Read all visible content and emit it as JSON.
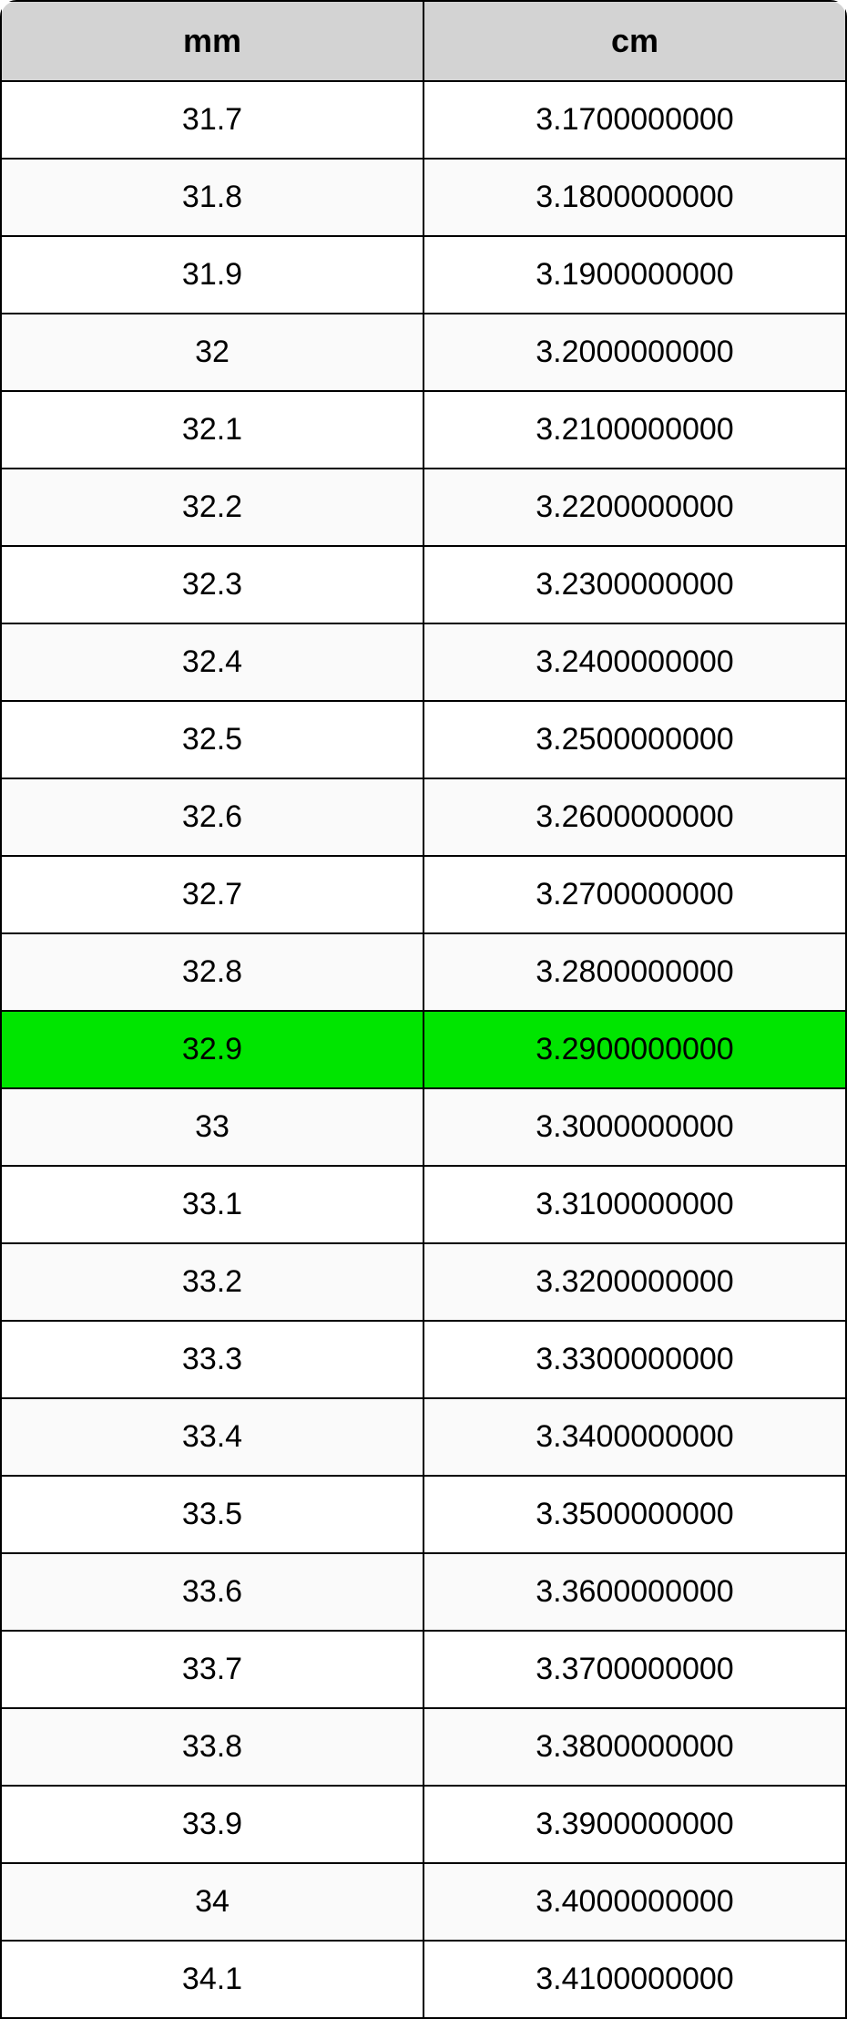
{
  "table": {
    "type": "table",
    "columns": [
      "mm",
      "cm"
    ],
    "header_background": "#d3d3d3",
    "header_fontsize": 36,
    "header_fontweight": "bold",
    "cell_fontsize": 34,
    "border_color": "#000000",
    "border_width": 2,
    "row_even_bg": "#ffffff",
    "row_odd_bg": "#fafafa",
    "highlight_bg": "#00e500",
    "highlight_row_index": 12,
    "rows": [
      [
        "31.7",
        "3.1700000000"
      ],
      [
        "31.8",
        "3.1800000000"
      ],
      [
        "31.9",
        "3.1900000000"
      ],
      [
        "32",
        "3.2000000000"
      ],
      [
        "32.1",
        "3.2100000000"
      ],
      [
        "32.2",
        "3.2200000000"
      ],
      [
        "32.3",
        "3.2300000000"
      ],
      [
        "32.4",
        "3.2400000000"
      ],
      [
        "32.5",
        "3.2500000000"
      ],
      [
        "32.6",
        "3.2600000000"
      ],
      [
        "32.7",
        "3.2700000000"
      ],
      [
        "32.8",
        "3.2800000000"
      ],
      [
        "32.9",
        "3.2900000000"
      ],
      [
        "33",
        "3.3000000000"
      ],
      [
        "33.1",
        "3.3100000000"
      ],
      [
        "33.2",
        "3.3200000000"
      ],
      [
        "33.3",
        "3.3300000000"
      ],
      [
        "33.4",
        "3.3400000000"
      ],
      [
        "33.5",
        "3.3500000000"
      ],
      [
        "33.6",
        "3.3600000000"
      ],
      [
        "33.7",
        "3.3700000000"
      ],
      [
        "33.8",
        "3.3800000000"
      ],
      [
        "33.9",
        "3.3900000000"
      ],
      [
        "34",
        "3.4000000000"
      ],
      [
        "34.1",
        "3.4100000000"
      ]
    ]
  }
}
